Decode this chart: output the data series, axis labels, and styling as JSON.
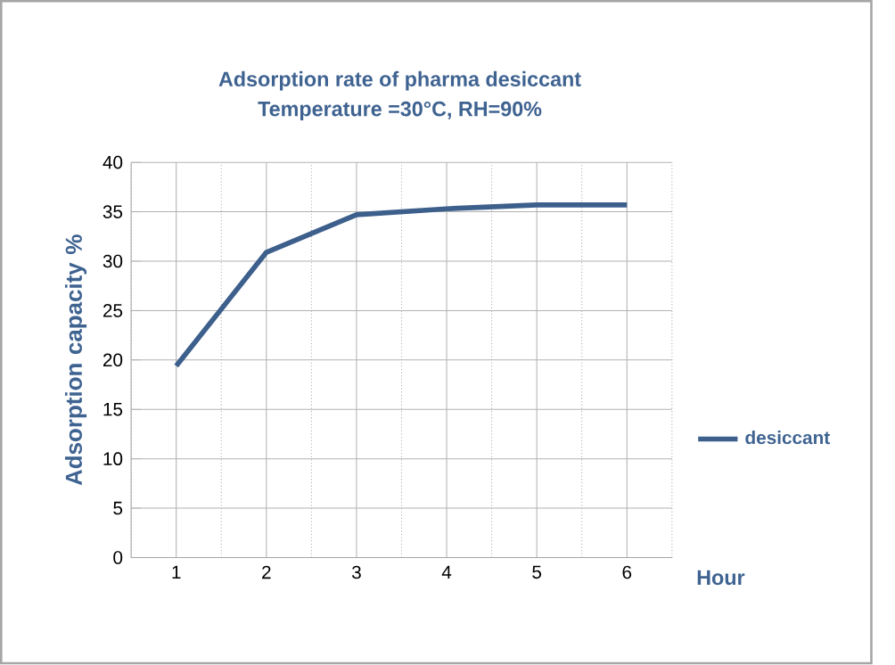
{
  "chart_data": {
    "type": "line",
    "title": "Adsorption rate of pharma desiccant",
    "subtitle": "Temperature =30°C,   RH=90%",
    "xlabel": "Hour",
    "ylabel": "Adsorption capacity %",
    "categories": [
      "1",
      "2",
      "3",
      "4",
      "5",
      "6"
    ],
    "series": [
      {
        "name": "desiccant",
        "color": "#3d5f8c",
        "values": [
          19.4,
          30.9,
          34.7,
          35.3,
          35.7,
          35.7
        ]
      }
    ],
    "ylim": [
      0,
      40
    ],
    "yticks": [
      0,
      5,
      10,
      15,
      20,
      25,
      30,
      35,
      40
    ],
    "grid": true,
    "legend": "right",
    "marker": "none",
    "line_style": "solid"
  }
}
